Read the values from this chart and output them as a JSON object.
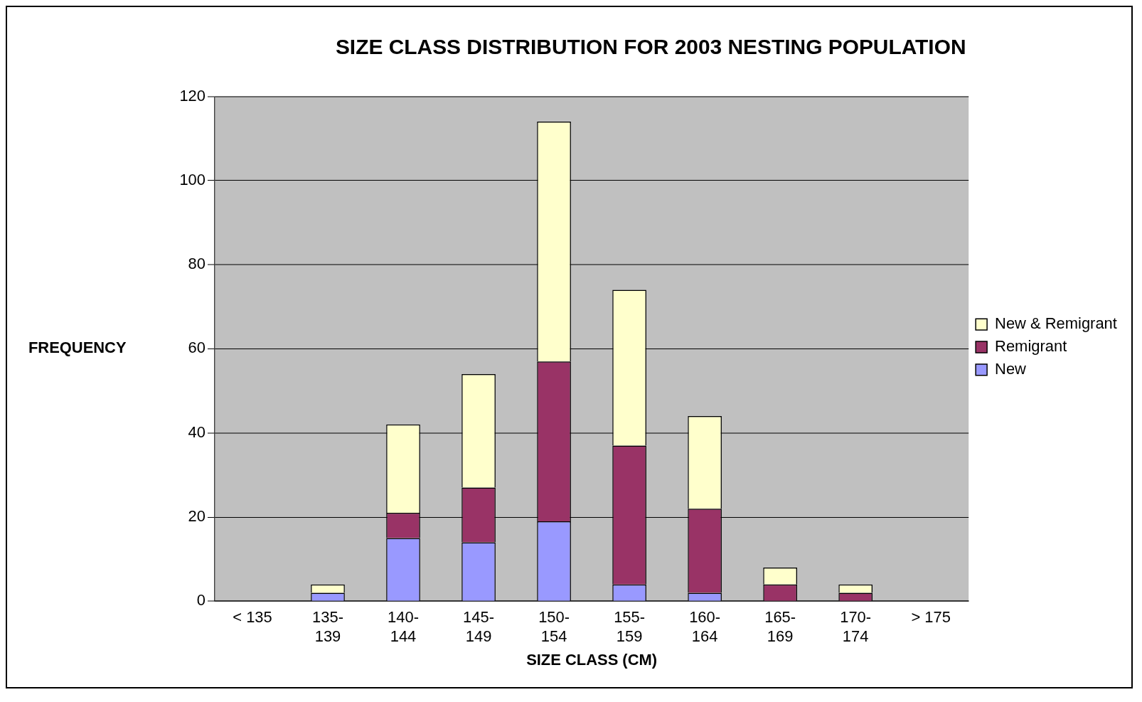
{
  "chart_data": {
    "type": "bar",
    "title": "SIZE CLASS DISTRIBUTION FOR 2003 NESTING POPULATION",
    "xlabel": "SIZE CLASS (CM)",
    "ylabel": "FREQUENCY",
    "categories": [
      "< 135",
      "135-\n139",
      "140-\n144",
      "145-\n149",
      "150-\n154",
      "155-\n159",
      "160-\n164",
      "165-\n169",
      "170-\n174",
      "> 175"
    ],
    "stacked": true,
    "ylim": [
      0,
      120
    ],
    "yticks": [
      0,
      20,
      40,
      60,
      80,
      100,
      120
    ],
    "grid": "y",
    "legend": "right",
    "series": [
      {
        "name": "New",
        "color": "#9999ff",
        "values": [
          0,
          2,
          15,
          14,
          19,
          4,
          2,
          0,
          0,
          0
        ]
      },
      {
        "name": "Remigrant",
        "color": "#993366",
        "values": [
          0,
          0,
          6,
          13,
          38,
          33,
          20,
          4,
          2,
          0
        ]
      },
      {
        "name": "New & Remigrant",
        "color": "#ffffcc",
        "values": [
          0,
          2,
          21,
          27,
          57,
          37,
          22,
          4,
          2,
          0
        ]
      }
    ]
  }
}
